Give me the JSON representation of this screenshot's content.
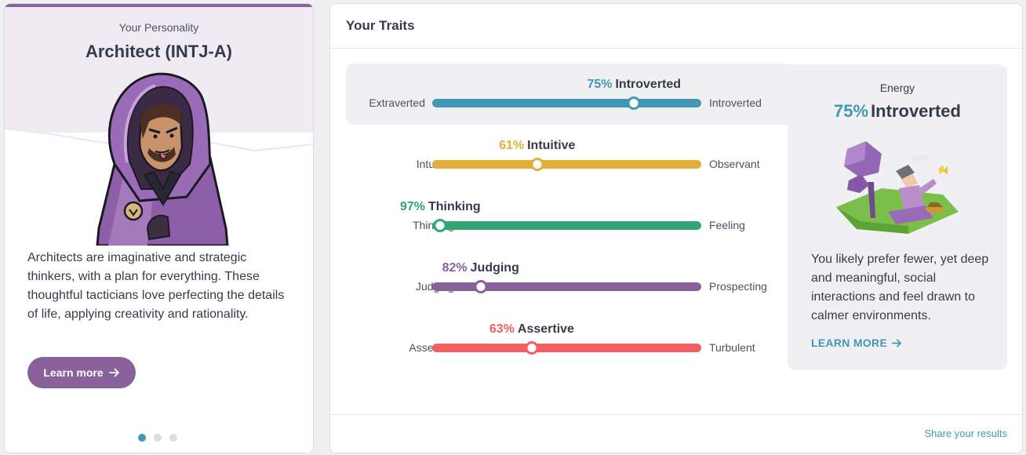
{
  "personality": {
    "kicker": "Your Personality",
    "title": "Architect (INTJ-A)",
    "description": "Architects are imaginative and strategic thinkers, with a plan for everything. These thoughtful tacticians love perfecting the details of life, applying creativity and rationality.",
    "learn_more": "Learn more",
    "accent": "#88619a",
    "slides": 3,
    "active_slide": 1
  },
  "traits_panel": {
    "title": "Your Traits",
    "share": "Share your results",
    "traits": [
      {
        "pct": "75%",
        "label": "Introverted",
        "left": "Extraverted",
        "right": "Introverted",
        "value": 75,
        "side": "right",
        "color": "#4298b4",
        "active": true
      },
      {
        "pct": "61%",
        "label": "Intuitive",
        "left": "Intuitive",
        "right": "Observant",
        "value": 61,
        "side": "left",
        "color": "#e4ae3a",
        "active": false
      },
      {
        "pct": "97%",
        "label": "Thinking",
        "left": "Thinking",
        "right": "Feeling",
        "value": 97,
        "side": "left",
        "color": "#33a474",
        "active": false
      },
      {
        "pct": "82%",
        "label": "Judging",
        "left": "Judging",
        "right": "Prospecting",
        "value": 82,
        "side": "left",
        "color": "#88619a",
        "active": false
      },
      {
        "pct": "63%",
        "label": "Assertive",
        "left": "Assertive",
        "right": "Turbulent",
        "value": 63,
        "side": "left",
        "color": "#f25e62",
        "active": false
      }
    ]
  },
  "energy": {
    "kicker": "Energy",
    "pct": "75%",
    "label": "Introverted",
    "description": "You likely prefer fewer, yet deep and meaningful, social interactions and feel drawn to calmer environments.",
    "learn_more": "LEARN MORE"
  }
}
